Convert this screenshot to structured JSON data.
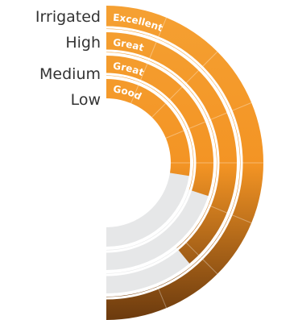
{
  "chart_data": {
    "type": "radial-bar",
    "max_value": 1,
    "categories": [
      "Irrigated",
      "High",
      "Medium",
      "Low"
    ],
    "ratings": [
      "Excellent",
      "Great",
      "Great",
      "Good"
    ],
    "values": [
      1.0,
      0.78,
      0.6,
      0.55
    ],
    "colors": {
      "bar_top": "#f5a032",
      "bar_bottom": "#6b3a0e",
      "track": "#e6e7e8",
      "divider": "#ffffff",
      "label": "#333333"
    }
  }
}
